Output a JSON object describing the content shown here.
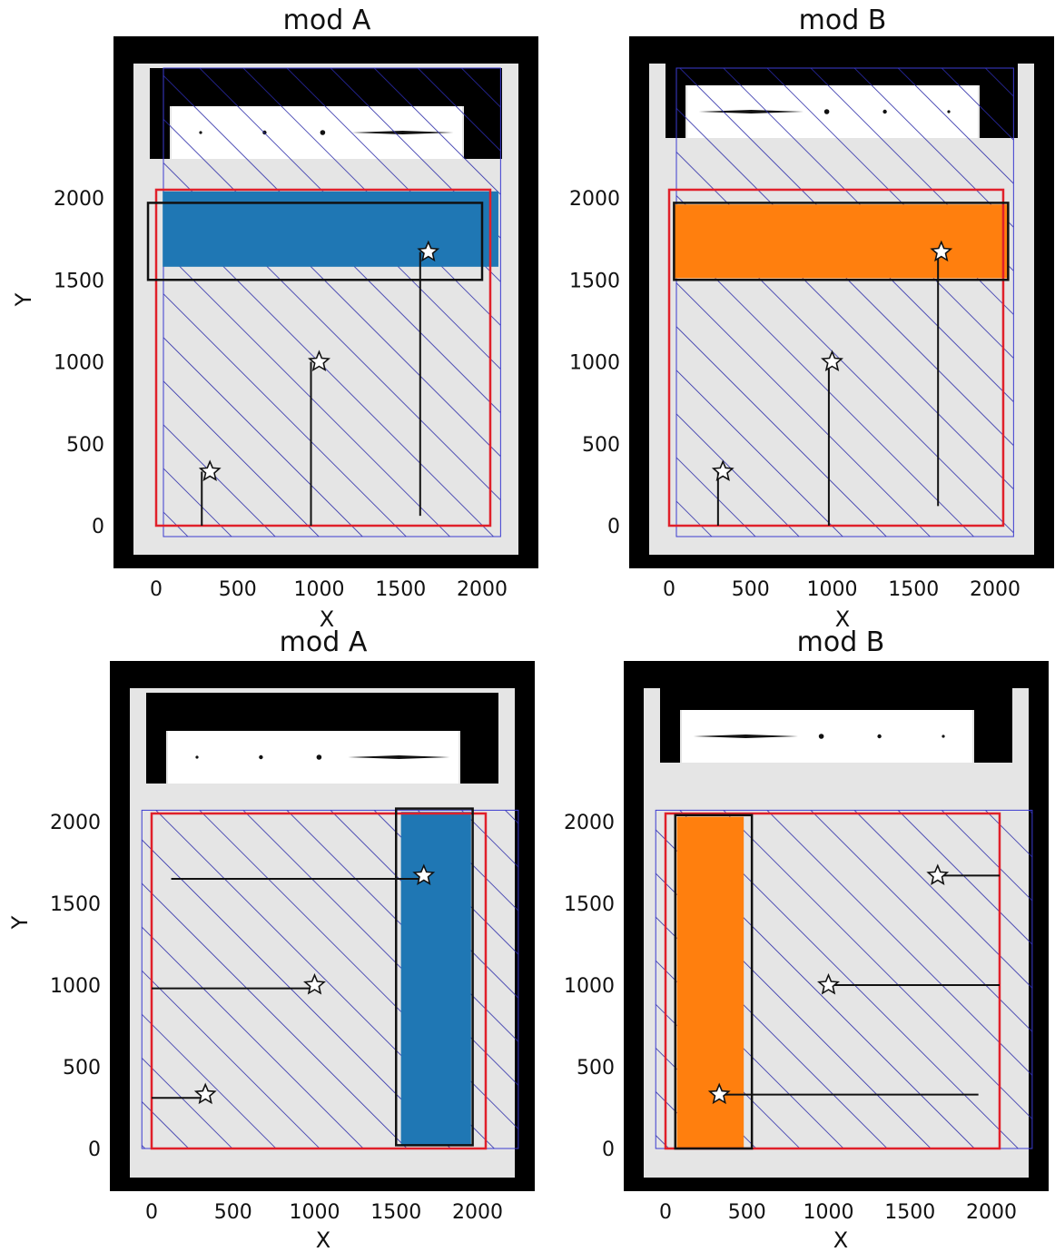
{
  "figure": {
    "panels": [
      {
        "title": "mod A",
        "xlabel": "X",
        "ylabel": "Y"
      },
      {
        "title": "mod B",
        "xlabel": "X",
        "ylabel": ""
      },
      {
        "title": "mod A",
        "xlabel": "X",
        "ylabel": "Y"
      },
      {
        "title": "mod B",
        "xlabel": "X",
        "ylabel": ""
      }
    ]
  },
  "colors": {
    "modA_fill": "#1f77b4",
    "modB_fill": "#ff7f0e",
    "outer_frame": "#000000",
    "detector_gray": "#e5e5e5",
    "hatch": "#2a2aa8",
    "red_box": "#e0202a",
    "star_fill": "#ffffff"
  },
  "chart_data": [
    {
      "type": "scatter",
      "title": "mod A",
      "xlabel": "X",
      "ylabel": "Y",
      "xlim": [
        -250,
        2350
      ],
      "ylim": [
        -250,
        3000
      ],
      "xticks": [
        0,
        500,
        1000,
        1500,
        2000
      ],
      "yticks": [
        0,
        500,
        1000,
        1500,
        2000
      ],
      "red_box": {
        "x": [
          0,
          2050
        ],
        "y": [
          0,
          2050
        ]
      },
      "slit_box": {
        "x": [
          -50,
          2000
        ],
        "y": [
          1500,
          1970
        ]
      },
      "filled_region": {
        "x": [
          40,
          2100
        ],
        "y": [
          1580,
          2040
        ],
        "color": "#1f77b4"
      },
      "stars": [
        {
          "x": 330,
          "y": 330
        },
        {
          "x": 1000,
          "y": 1000
        },
        {
          "x": 1670,
          "y": 1670
        }
      ],
      "traces": [
        {
          "x": [
            280,
            280
          ],
          "y": [
            0,
            330
          ]
        },
        {
          "x": [
            950,
            950
          ],
          "y": [
            0,
            1000
          ]
        },
        {
          "x": [
            1620,
            1620
          ],
          "y": [
            60,
            1670
          ]
        }
      ]
    },
    {
      "type": "scatter",
      "title": "mod B",
      "xlabel": "X",
      "ylabel": "",
      "xlim": [
        -250,
        2350
      ],
      "ylim": [
        -250,
        3000
      ],
      "xticks": [
        0,
        500,
        1000,
        1500,
        2000
      ],
      "yticks": [
        0,
        500,
        1000,
        1500,
        2000
      ],
      "red_box": {
        "x": [
          0,
          2050
        ],
        "y": [
          0,
          2050
        ]
      },
      "slit_box": {
        "x": [
          30,
          2080
        ],
        "y": [
          1500,
          1970
        ]
      },
      "filled_region": {
        "x": [
          30,
          2080
        ],
        "y": [
          1510,
          1960
        ],
        "color": "#ff7f0e"
      },
      "stars": [
        {
          "x": 330,
          "y": 330
        },
        {
          "x": 1000,
          "y": 1000
        },
        {
          "x": 1670,
          "y": 1670
        }
      ],
      "traces": [
        {
          "x": [
            300,
            300
          ],
          "y": [
            0,
            330
          ]
        },
        {
          "x": [
            980,
            980
          ],
          "y": [
            0,
            1000
          ]
        },
        {
          "x": [
            1650,
            1650
          ],
          "y": [
            120,
            1670
          ]
        }
      ]
    },
    {
      "type": "scatter",
      "title": "mod A",
      "xlabel": "X",
      "ylabel": "Y",
      "xlim": [
        -250,
        2350
      ],
      "ylim": [
        -250,
        3000
      ],
      "xticks": [
        0,
        500,
        1000,
        1500,
        2000
      ],
      "yticks": [
        0,
        500,
        1000,
        1500,
        2000
      ],
      "red_box": {
        "x": [
          0,
          2050
        ],
        "y": [
          0,
          2050
        ]
      },
      "slit_box": {
        "x": [
          1500,
          1970
        ],
        "y": [
          20,
          2080
        ]
      },
      "filled_region": {
        "x": [
          1530,
          1960
        ],
        "y": [
          20,
          2060
        ],
        "color": "#1f77b4"
      },
      "stars": [
        {
          "x": 330,
          "y": 330
        },
        {
          "x": 1000,
          "y": 1000
        },
        {
          "x": 1670,
          "y": 1670
        }
      ],
      "traces": [
        {
          "x": [
            0,
            330
          ],
          "y": [
            310,
            310
          ]
        },
        {
          "x": [
            0,
            1000
          ],
          "y": [
            980,
            980
          ]
        },
        {
          "x": [
            120,
            1670
          ],
          "y": [
            1650,
            1650
          ]
        }
      ]
    },
    {
      "type": "scatter",
      "title": "mod B",
      "xlabel": "X",
      "ylabel": "",
      "xlim": [
        -250,
        2350
      ],
      "ylim": [
        -250,
        3000
      ],
      "xticks": [
        0,
        500,
        1000,
        1500,
        2000
      ],
      "yticks": [
        0,
        500,
        1000,
        1500,
        2000
      ],
      "red_box": {
        "x": [
          0,
          2050
        ],
        "y": [
          0,
          2050
        ]
      },
      "slit_box": {
        "x": [
          60,
          530
        ],
        "y": [
          0,
          2040
        ]
      },
      "filled_region": {
        "x": [
          70,
          480
        ],
        "y": [
          0,
          2030
        ],
        "color": "#ff7f0e"
      },
      "stars": [
        {
          "x": 330,
          "y": 330
        },
        {
          "x": 1000,
          "y": 1000
        },
        {
          "x": 1670,
          "y": 1670
        }
      ],
      "traces": [
        {
          "x": [
            330,
            1920
          ],
          "y": [
            330,
            330
          ]
        },
        {
          "x": [
            1000,
            2050
          ],
          "y": [
            1000,
            1000
          ]
        },
        {
          "x": [
            1670,
            2050
          ],
          "y": [
            1670,
            1670
          ]
        }
      ]
    }
  ]
}
